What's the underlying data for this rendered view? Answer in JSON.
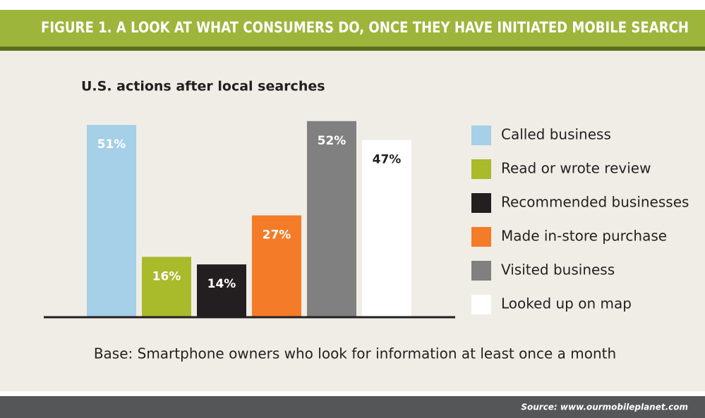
{
  "chart_data": {
    "type": "bar",
    "title": "FIGURE 1. A LOOK AT WHAT CONSUMERS DO, ONCE THEY HAVE INITIATED MOBILE SEARCH",
    "subtitle": "U.S. actions after local searches",
    "categories": [
      "Called business",
      "Read or wrote review",
      "Recommended businesses",
      "Made in-store purchase",
      "Visited business",
      "Looked up on map"
    ],
    "values": [
      51,
      16,
      14,
      27,
      52,
      47
    ],
    "value_labels": [
      "51%",
      "16%",
      "14%",
      "27%",
      "52%",
      "47%"
    ],
    "colors": [
      "#a6cfe8",
      "#a9ba2b",
      "#231f20",
      "#f47b28",
      "#808080",
      "#ffffff"
    ],
    "label_colors": [
      "#ffffff",
      "#ffffff",
      "#ffffff",
      "#ffffff",
      "#ffffff",
      "#231f20"
    ],
    "note": "Base: Smartphone owners who look for information at least once a month",
    "source": "Source: www.ourmobileplanet.com"
  }
}
